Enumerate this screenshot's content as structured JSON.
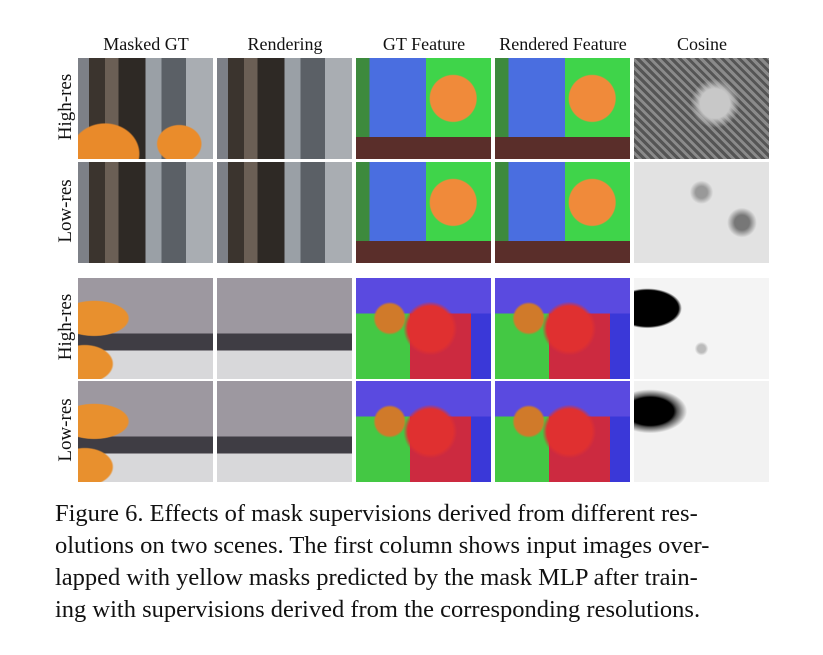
{
  "column_headers": [
    "Masked GT",
    "Rendering",
    "GT Feature",
    "Rendered Feature",
    "Cosine"
  ],
  "scenes": [
    {
      "rows": [
        "High-res",
        "Low-res"
      ]
    },
    {
      "rows": [
        "High-res",
        "Low-res"
      ]
    }
  ],
  "caption_lines": [
    "Figure 6. Effects of mask supervisions derived from different res-",
    "olutions on two scenes. The first column shows input images over-",
    "lapped with yellow masks predicted by the mask MLP after train-",
    "ing with supervisions derived from the corresponding resolutions."
  ]
}
